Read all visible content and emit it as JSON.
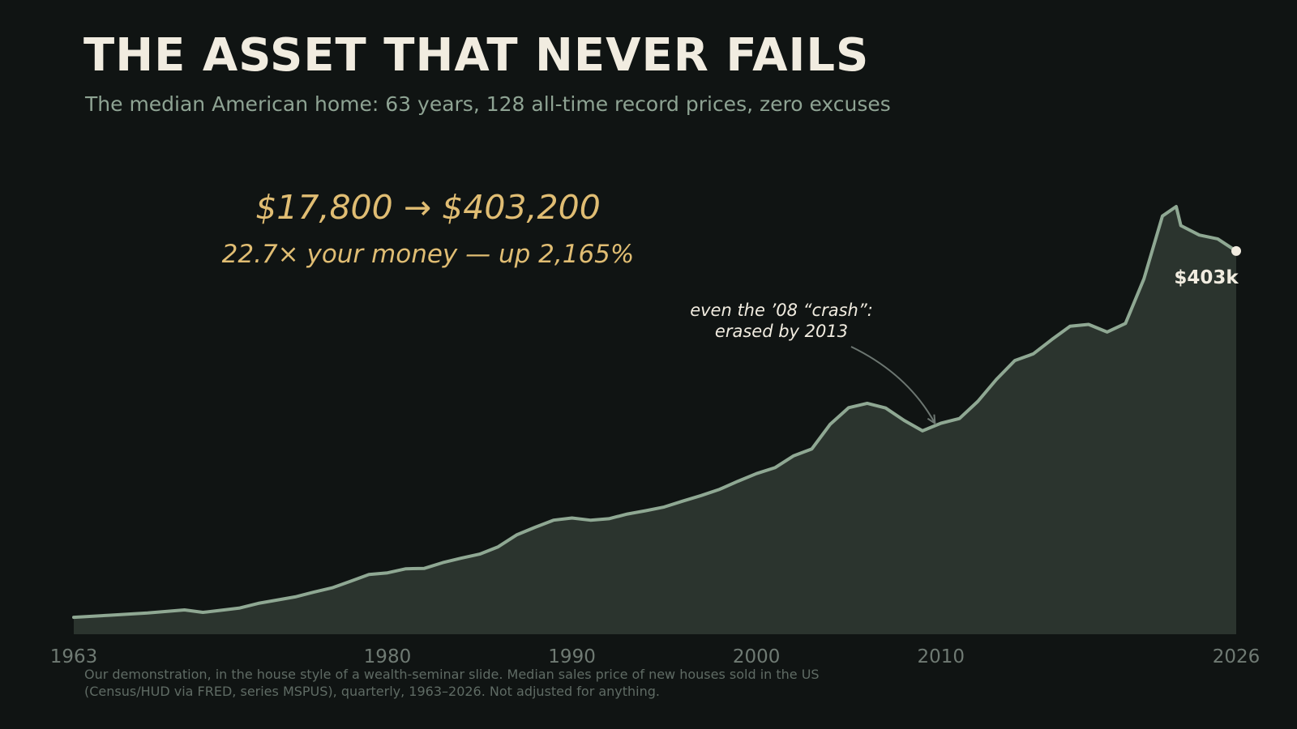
{
  "slide": {
    "title": "THE ASSET THAT NEVER FAILS",
    "subtitle": "The median American home: 63 years, 128 all-time record prices, zero excuses",
    "footnote": [
      "Our demonstration, in the house style of a wealth-seminar slide. Median sales price of new houses sold in the US",
      "(Census/HUD via FRED, series MSPUS), quarterly, 1963–2026. Not adjusted for anything."
    ]
  },
  "colors": {
    "background": "#101413",
    "line": "#8fa893",
    "area": "#2b342e",
    "title": "#f1ece0",
    "subtitle": "#8ea393",
    "headline": "#e0bd73",
    "annotation": "#f1ece0",
    "axis_text": "#6f7a73",
    "end_marker": "#f1ece0"
  },
  "chart_data": {
    "type": "area",
    "title": "",
    "xlabel": "",
    "ylabel": "",
    "xlim": [
      1963,
      2026
    ],
    "ylim": [
      0,
      450000
    ],
    "grid": false,
    "x_ticks": [
      "1963",
      "1980",
      "1990",
      "2000",
      "2010",
      "2026"
    ],
    "series": [
      {
        "x": [
          1963,
          1965,
          1967,
          1969,
          1970,
          1971,
          1972,
          1973,
          1974,
          1975,
          1976,
          1977,
          1978,
          1979,
          1980,
          1981,
          1982,
          1983,
          1984,
          1985,
          1986,
          1987,
          1988,
          1989,
          1990,
          1991,
          1992,
          1993,
          1994,
          1995,
          1996,
          1997,
          1998,
          1999,
          2000,
          2001,
          2002,
          2003,
          2004,
          2005,
          2006,
          2007,
          2008,
          2009,
          2010,
          2011,
          2012,
          2013,
          2014,
          2015,
          2016,
          2017,
          2018,
          2019,
          2020,
          2021,
          2022,
          2022.75,
          2023,
          2024,
          2025,
          2026
        ],
        "y": [
          17800,
          20000,
          22300,
          25600,
          23000,
          25200,
          27600,
          32500,
          35900,
          39300,
          44200,
          48800,
          55700,
          62900,
          64600,
          68900,
          69300,
          75300,
          80000,
          84300,
          92000,
          104500,
          112500,
          120000,
          122300,
          120000,
          121500,
          126500,
          130000,
          133900,
          140000,
          145900,
          152500,
          161000,
          169000,
          175200,
          187600,
          195000,
          221000,
          238400,
          243000,
          238000,
          225000,
          214000,
          222000,
          227000,
          245000,
          268000,
          288000,
          295000,
          310000,
          324000,
          326000,
          318000,
          327000,
          374000,
          440000,
          450000,
          430000,
          420000,
          416000,
          403200
        ]
      }
    ],
    "headline": "$17,800  →  $403,200",
    "subheadline": "22.7× your money — up 2,165%",
    "annotation": {
      "lines": [
        "even the ’08 “crash”:",
        "erased by 2013"
      ],
      "point": [
        2009.5,
        215000
      ]
    },
    "end_label": {
      "text": "$403k",
      "point": [
        2026,
        403200
      ]
    }
  }
}
